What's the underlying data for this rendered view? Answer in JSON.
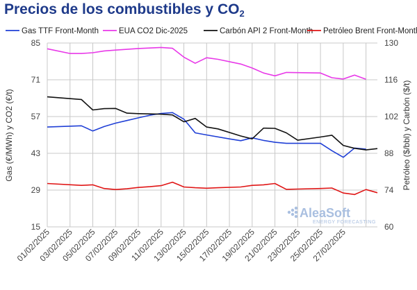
{
  "title_main": "Precios de los combustibles y CO",
  "title_sub": "2",
  "watermark": {
    "brand": "AleaSoft",
    "tagline": "ENERGY FORECASTING"
  },
  "chart_data": {
    "type": "line",
    "title": "Precios de los combustibles y CO2",
    "y_left_label": "Gas (€/MWh) y CO2 (€/t)",
    "y_right_label": "Petróleo ($/bbl) y Carbón ($/t)",
    "y_left_ticks": [
      "15",
      "29",
      "43",
      "57",
      "71",
      "85"
    ],
    "y_right_ticks": [
      "60",
      "74",
      "88",
      "102",
      "116",
      "130"
    ],
    "y_left_range": [
      15,
      85
    ],
    "y_right_range": [
      60,
      130
    ],
    "grid": true,
    "legend_position": "top",
    "x_ticks": [
      "01/02/2025",
      "03/02/2025",
      "05/02/2025",
      "07/02/2025",
      "09/02/2025",
      "11/02/2025",
      "13/02/2025",
      "15/02/2025",
      "17/02/2025",
      "19/02/2025",
      "21/02/2025",
      "23/02/2025",
      "25/02/2025",
      "27/02/2025"
    ],
    "x": [
      "01/02/2025",
      "02/02/2025",
      "03/02/2025",
      "04/02/2025",
      "05/02/2025",
      "06/02/2025",
      "07/02/2025",
      "08/02/2025",
      "09/02/2025",
      "10/02/2025",
      "11/02/2025",
      "12/02/2025",
      "13/02/2025",
      "14/02/2025",
      "15/02/2025",
      "16/02/2025",
      "17/02/2025",
      "18/02/2025",
      "19/02/2025",
      "20/02/2025",
      "21/02/2025",
      "22/02/2025",
      "23/02/2025",
      "24/02/2025",
      "25/02/2025",
      "26/02/2025",
      "27/02/2025",
      "28/02/2025"
    ],
    "series": [
      {
        "name": "Gas TTF Front-Month",
        "axis": "left",
        "color": "#1f3fd6",
        "points": [
          [
            0,
            53.0
          ],
          [
            3,
            53.5
          ],
          [
            4,
            51.5
          ],
          [
            5,
            53.2
          ],
          [
            6,
            54.5
          ],
          [
            7,
            55.5
          ],
          [
            8,
            56.5
          ],
          [
            9,
            57.5
          ],
          [
            10,
            58.2
          ],
          [
            11,
            58.5
          ],
          [
            12,
            56.0
          ],
          [
            13,
            50.8
          ],
          [
            14,
            50.0
          ],
          [
            16,
            48.5
          ],
          [
            17,
            47.8
          ],
          [
            18,
            48.9
          ],
          [
            19,
            47.9
          ],
          [
            20,
            47.2
          ],
          [
            21,
            46.8
          ],
          [
            24,
            46.8
          ],
          [
            25,
            44.0
          ],
          [
            26,
            41.5
          ],
          [
            27,
            45.0
          ],
          [
            28,
            44.6
          ]
        ]
      },
      {
        "name": "EUA CO2 Dic-2025",
        "axis": "left",
        "color": "#e838e8",
        "points": [
          [
            0,
            82.8
          ],
          [
            2,
            81.0
          ],
          [
            3,
            81.0
          ],
          [
            4,
            81.3
          ],
          [
            5,
            82.0
          ],
          [
            6,
            82.3
          ],
          [
            7,
            82.6
          ],
          [
            8,
            82.9
          ],
          [
            9,
            83.1
          ],
          [
            10,
            83.3
          ],
          [
            11,
            83.0
          ],
          [
            12,
            79.6
          ],
          [
            13,
            77.3
          ],
          [
            14,
            79.4
          ],
          [
            15,
            78.8
          ],
          [
            17,
            77.0
          ],
          [
            18,
            75.5
          ],
          [
            19,
            73.6
          ],
          [
            20,
            72.5
          ],
          [
            21,
            73.8
          ],
          [
            24,
            73.6
          ],
          [
            25,
            71.8
          ],
          [
            26,
            71.3
          ],
          [
            27,
            72.8
          ],
          [
            28,
            71.2
          ]
        ]
      },
      {
        "name": "Carbón API 2 Front-Month",
        "axis": "right",
        "color": "#111111",
        "points": [
          [
            0,
            109.5
          ],
          [
            3,
            108.5
          ],
          [
            4,
            104.5
          ],
          [
            5,
            105.0
          ],
          [
            6,
            105.1
          ],
          [
            7,
            103.3
          ],
          [
            8,
            103.1
          ],
          [
            9,
            103.0
          ],
          [
            10,
            102.9
          ],
          [
            11,
            102.6
          ],
          [
            12,
            100.0
          ],
          [
            13,
            101.3
          ],
          [
            14,
            98.0
          ],
          [
            15,
            97.3
          ],
          [
            17,
            94.6
          ],
          [
            18,
            93.5
          ],
          [
            19,
            97.6
          ],
          [
            20,
            97.5
          ],
          [
            21,
            95.8
          ],
          [
            22,
            93.0
          ],
          [
            24,
            94.2
          ],
          [
            25,
            94.9
          ],
          [
            26,
            91.0
          ],
          [
            27,
            89.9
          ],
          [
            28,
            89.3
          ],
          [
            29,
            89.8
          ]
        ]
      },
      {
        "name": "Petróleo Brent Front-Month",
        "axis": "right",
        "color": "#e01515",
        "points": [
          [
            0,
            76.5
          ],
          [
            3,
            75.8
          ],
          [
            4,
            76.0
          ],
          [
            5,
            74.6
          ],
          [
            6,
            74.2
          ],
          [
            7,
            74.5
          ],
          [
            8,
            75.0
          ],
          [
            9,
            75.3
          ],
          [
            10,
            75.7
          ],
          [
            11,
            77.0
          ],
          [
            12,
            75.2
          ],
          [
            13,
            74.9
          ],
          [
            14,
            74.7
          ],
          [
            15,
            74.9
          ],
          [
            17,
            75.2
          ],
          [
            18,
            75.8
          ],
          [
            19,
            76.0
          ],
          [
            20,
            76.5
          ],
          [
            21,
            74.3
          ],
          [
            22,
            74.4
          ],
          [
            24,
            74.6
          ],
          [
            25,
            74.8
          ],
          [
            26,
            72.9
          ],
          [
            27,
            72.3
          ],
          [
            28,
            74.2
          ],
          [
            29,
            73.0
          ]
        ]
      }
    ]
  }
}
